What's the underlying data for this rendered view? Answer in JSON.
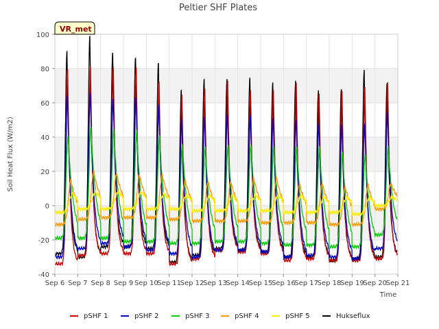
{
  "chart_data": {
    "type": "line",
    "title": "Peltier SHF Plates",
    "xlabel": "Time",
    "ylabel": "Soil Heat Flux (W/m2)",
    "badge": "VR_met",
    "xlim": [
      6,
      21
    ],
    "ylim": [
      -40,
      100
    ],
    "x_ticks": [
      6,
      7,
      8,
      9,
      10,
      11,
      12,
      13,
      14,
      15,
      16,
      17,
      18,
      19,
      20,
      21
    ],
    "x_tick_labels": [
      "Sep 6",
      "Sep 7",
      "Sep 8",
      "Sep 9",
      "Sep 10",
      "Sep 11",
      "Sep 12",
      "Sep 13",
      "Sep 14",
      "Sep 15",
      "Sep 16",
      "Sep 17",
      "Sep 18",
      "Sep 19",
      "Sep 20",
      "Sep 21"
    ],
    "y_ticks": [
      -40,
      -20,
      0,
      20,
      40,
      60,
      80,
      100
    ],
    "y_tick_labels": [
      "-40",
      "-20",
      "0",
      "20",
      "40",
      "60",
      "80",
      "100"
    ],
    "grid": true,
    "legend_position": "bottom",
    "days": [
      6,
      7,
      8,
      9,
      10,
      11,
      12,
      13,
      14,
      15,
      16,
      17,
      18,
      19,
      20
    ],
    "series": [
      {
        "name": "pSHF 1",
        "color": "#cc0000",
        "peak_time": 0.56,
        "rise_width": 0.1,
        "fall_tau": 0.11,
        "peaks": [
          80,
          82,
          81,
          80,
          72,
          65,
          68,
          72,
          67,
          68,
          72,
          65,
          67,
          70,
          72
        ],
        "troughs": [
          -34,
          -29,
          -28,
          -28,
          -28,
          -34,
          -31,
          -26,
          -27,
          -28,
          -32,
          -31,
          -32,
          -32,
          -31
        ]
      },
      {
        "name": "pSHF 2",
        "color": "#0000cc",
        "peak_time": 0.55,
        "rise_width": 0.1,
        "fall_tau": 0.15,
        "peaks": [
          64,
          66,
          63,
          63,
          58,
          50,
          52,
          53,
          52,
          51,
          51,
          48,
          47,
          48,
          55
        ],
        "troughs": [
          -30,
          -25,
          -22,
          -24,
          -26,
          -28,
          -30,
          -26,
          -26,
          -27,
          -30,
          -29,
          -30,
          -31,
          -25
        ]
      },
      {
        "name": "pSHF 3",
        "color": "#00cc00",
        "peak_time": 0.58,
        "rise_width": 0.12,
        "fall_tau": 0.22,
        "peaks": [
          41,
          46,
          44,
          43,
          41,
          36,
          34,
          35,
          36,
          35,
          34,
          34,
          31,
          30,
          34
        ],
        "troughs": [
          -19,
          -19,
          -19,
          -21,
          -21,
          -22,
          -22,
          -21,
          -21,
          -22,
          -23,
          -23,
          -24,
          -24,
          -17
        ]
      },
      {
        "name": "pSHF 4",
        "color": "#ff9900",
        "peak_time": 0.7,
        "rise_width": 0.15,
        "fall_tau": 0.4,
        "peaks": [
          15,
          20,
          19,
          18,
          18,
          15,
          14,
          14,
          16,
          16,
          13,
          13,
          11,
          12,
          13
        ],
        "troughs": [
          -11,
          -8,
          -7,
          -7,
          -7,
          -8,
          -9,
          -9,
          -9,
          -10,
          -10,
          -10,
          -11,
          -11,
          -2
        ]
      },
      {
        "name": "pSHF 5",
        "color": "#ffee00",
        "peak_time": 0.78,
        "rise_width": 0.2,
        "fall_tau": 0.55,
        "peaks": [
          7,
          8,
          8,
          8,
          7,
          6,
          6,
          6,
          6,
          6,
          6,
          5,
          5,
          5,
          5
        ],
        "troughs": [
          -4,
          -2,
          -2,
          -2,
          -2,
          -2,
          -3,
          -3,
          -3,
          -3,
          -4,
          -4,
          -4,
          -5,
          0
        ]
      },
      {
        "name": "Hukseflux",
        "color": "#000000",
        "peak_time": 0.53,
        "rise_width": 0.1,
        "fall_tau": 0.12,
        "peaks": [
          90,
          99,
          90,
          87,
          83,
          67,
          74,
          74,
          74,
          71,
          73,
          68,
          68,
          79,
          72
        ],
        "troughs": [
          -28,
          -30,
          -24,
          -24,
          -25,
          -33,
          -29,
          -25,
          -26,
          -27,
          -30,
          -30,
          -32,
          -31,
          -30
        ]
      }
    ]
  }
}
